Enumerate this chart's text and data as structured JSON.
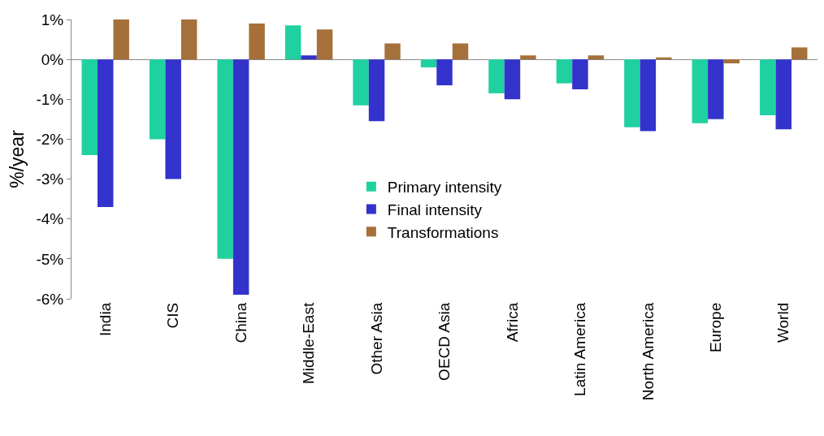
{
  "chart_data": {
    "type": "bar",
    "ylabel": "%/year",
    "categories": [
      "India",
      "CIS",
      "China",
      "Middle-East",
      "Other Asia",
      "OECD Asia",
      "Africa",
      "Latin America",
      "North America",
      "Europe",
      "World"
    ],
    "series": [
      {
        "name": "Primary intensity",
        "color": "#1fd1a0",
        "values": [
          -2.4,
          -2.0,
          -5.0,
          0.85,
          -1.15,
          -0.2,
          -0.85,
          -0.6,
          -1.7,
          -1.6,
          -1.4
        ]
      },
      {
        "name": "Final intensity",
        "color": "#3333cc",
        "values": [
          -3.7,
          -3.0,
          -5.9,
          0.1,
          -1.55,
          -0.65,
          -1.0,
          -0.75,
          -1.8,
          -1.5,
          -1.75
        ]
      },
      {
        "name": "Transformations",
        "color": "#a5703a",
        "values": [
          1.0,
          1.0,
          0.9,
          0.75,
          0.4,
          0.4,
          0.1,
          0.1,
          0.05,
          -0.1,
          0.3
        ]
      }
    ],
    "ylim": [
      -6,
      1
    ],
    "yticks": [
      {
        "value": -6,
        "label": "-6%"
      },
      {
        "value": -5,
        "label": "-5%"
      },
      {
        "value": -4,
        "label": "-4%"
      },
      {
        "value": -3,
        "label": "-3%"
      },
      {
        "value": -2,
        "label": "-2%"
      },
      {
        "value": -1,
        "label": "-1%"
      },
      {
        "value": 0,
        "label": "0%"
      },
      {
        "value": 1,
        "label": "1%"
      }
    ],
    "legend": "center"
  }
}
